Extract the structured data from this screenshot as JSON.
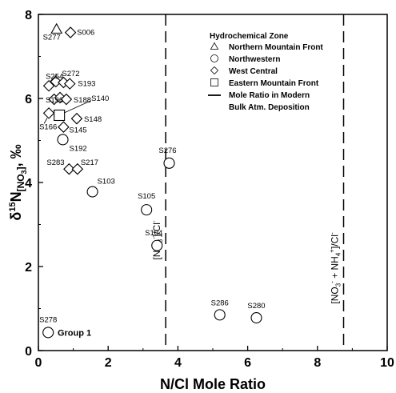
{
  "chart_data": {
    "type": "scatter",
    "xlabel": "N/Cl Mole Ratio",
    "ylabel_main": "δ",
    "ylabel_sup": "15",
    "ylabel_sym": "N",
    "ylabel_sub": "[NO",
    "ylabel_sub2": "3",
    "ylabel_sub3": "]",
    "ylabel_unit": ", ‰",
    "xlim": [
      0,
      10
    ],
    "ylim": [
      0,
      8
    ],
    "xticks": [
      "0",
      "2",
      "4",
      "6",
      "8",
      "10"
    ],
    "yticks": [
      "0",
      "2",
      "4",
      "6",
      "8"
    ],
    "grid": false,
    "legend": {
      "title": "Hydrochemical Zone",
      "placement": "top-right",
      "entries": [
        {
          "marker": "triangle",
          "label": "Northern Mountain Front"
        },
        {
          "marker": "circle",
          "label": "Northwestern"
        },
        {
          "marker": "diamond",
          "label": "West Central"
        },
        {
          "marker": "square",
          "label": "Eastern Mountain Front"
        },
        {
          "marker": "dash",
          "label": "Mole Ratio in Modern"
        },
        {
          "marker": "none",
          "label": "Bulk Atm. Deposition"
        }
      ]
    },
    "reference_lines": [
      {
        "x": 3.65,
        "label_main": "[NO",
        "label_sub": "3",
        "label_sup": "-",
        "label_end": "]/Cl",
        "label_sup2": "-"
      },
      {
        "x": 8.75,
        "label_main": "[NO",
        "label_sub": "3",
        "label_sup": "-",
        "label_mid": " + NH",
        "label_sub2": "4",
        "label_sup3": "+",
        "label_end": "]/Cl",
        "label_sup2": "-"
      }
    ],
    "series": [
      {
        "marker": "triangle",
        "points": [
          {
            "id": "S277",
            "x": 0.52,
            "y": 7.65
          }
        ]
      },
      {
        "marker": "circle",
        "points": [
          {
            "id": "S192",
            "x": 0.7,
            "y": 5.02
          },
          {
            "id": "S103",
            "x": 1.55,
            "y": 3.78
          },
          {
            "id": "S276",
            "x": 3.75,
            "y": 4.46
          },
          {
            "id": "S105",
            "x": 3.1,
            "y": 3.35
          },
          {
            "id": "S104",
            "x": 3.4,
            "y": 2.5
          },
          {
            "id": "S286",
            "x": 5.2,
            "y": 0.85
          },
          {
            "id": "S280",
            "x": 6.25,
            "y": 0.78
          },
          {
            "id": "S278",
            "x": 0.28,
            "y": 0.43
          }
        ]
      },
      {
        "marker": "diamond",
        "points": [
          {
            "id": "S006",
            "x": 0.92,
            "y": 7.57
          },
          {
            "id": "S254",
            "x": 0.3,
            "y": 6.3
          },
          {
            "id": "",
            "x": 0.5,
            "y": 6.4
          },
          {
            "id": "S272",
            "x": 0.72,
            "y": 6.38
          },
          {
            "id": "S193",
            "x": 0.9,
            "y": 6.35
          },
          {
            "id": "",
            "x": 0.45,
            "y": 5.98
          },
          {
            "id": "S196",
            "x": 0.62,
            "y": 6.02
          },
          {
            "id": "S188",
            "x": 0.8,
            "y": 5.98
          },
          {
            "id": "S166",
            "x": 0.3,
            "y": 5.65
          },
          {
            "id": "S148",
            "x": 1.1,
            "y": 5.52
          },
          {
            "id": "S145",
            "x": 0.72,
            "y": 5.32
          },
          {
            "id": "S283",
            "x": 0.88,
            "y": 4.32
          },
          {
            "id": "S217",
            "x": 1.12,
            "y": 4.32
          }
        ]
      },
      {
        "marker": "square",
        "points": [
          {
            "id": "S140",
            "x": 0.6,
            "y": 5.6
          }
        ]
      }
    ],
    "annotations": [
      {
        "text": "Group 1",
        "x": 0.55,
        "y": 0.43
      }
    ]
  }
}
